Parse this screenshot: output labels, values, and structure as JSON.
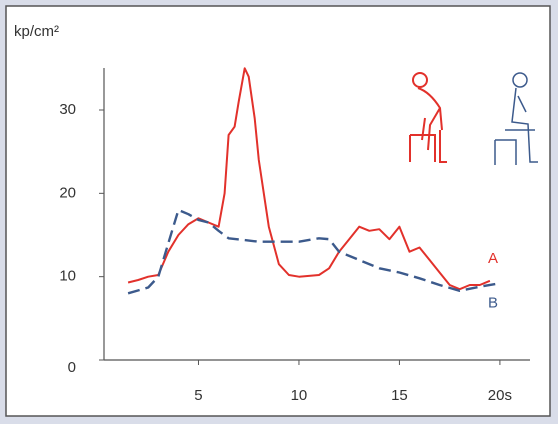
{
  "chart_data": {
    "type": "line",
    "y_label": "kp/cm²",
    "xlim": [
      0,
      21
    ],
    "ylim": [
      0,
      36
    ],
    "xticks": [
      5,
      10,
      15,
      {
        "value": 20,
        "label": "20s"
      }
    ],
    "yticks": [
      0,
      10,
      20,
      30
    ],
    "series": [
      {
        "name": "A",
        "color": "#e2312b",
        "dash": false,
        "x": [
          1.5,
          2,
          2.5,
          3,
          3.5,
          4,
          4.5,
          5,
          5.5,
          6,
          6.3,
          6.5,
          6.8,
          7,
          7.3,
          7.5,
          7.8,
          8,
          8.5,
          9,
          9.5,
          10,
          11,
          11.5,
          12,
          12.5,
          13,
          13.5,
          14,
          14.5,
          15,
          15.5,
          16,
          16.5,
          17,
          17.5,
          18,
          18.5,
          19,
          19.5
        ],
        "values": [
          9.3,
          9.6,
          10,
          10.2,
          13,
          15,
          16.3,
          17,
          16.5,
          16,
          20,
          27,
          28,
          31,
          35,
          34,
          29,
          24,
          16,
          11.5,
          10.2,
          10,
          10.2,
          11,
          13,
          14.5,
          16,
          15.5,
          15.7,
          14.5,
          16,
          13,
          13.5,
          12,
          10.5,
          9,
          8.5,
          9,
          9,
          9.5
        ]
      },
      {
        "name": "B",
        "color": "#3c5a8c",
        "dash": true,
        "x": [
          1.5,
          2.5,
          3,
          3.5,
          4,
          4.5,
          5,
          5.5,
          6,
          6.5,
          8,
          9,
          10,
          11,
          11.5,
          12,
          13,
          14,
          15,
          16,
          17,
          18,
          19,
          20
        ],
        "values": [
          8,
          8.7,
          10,
          14,
          18,
          17.5,
          16.8,
          16.5,
          15.5,
          14.6,
          14.2,
          14.2,
          14.2,
          14.6,
          14.5,
          13,
          12,
          11,
          10.5,
          9.8,
          9,
          8.3,
          8.8,
          9.2
        ]
      }
    ]
  }
}
